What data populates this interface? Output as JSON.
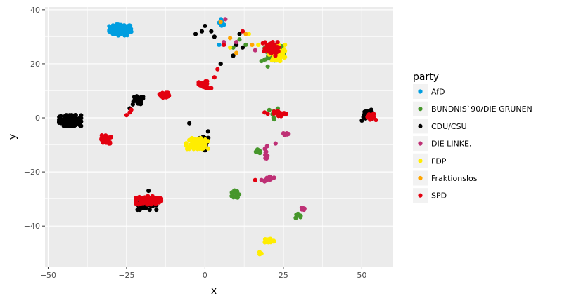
{
  "chart_data": {
    "type": "scatter",
    "xlabel": "x",
    "ylabel": "y",
    "xlim": [
      -51,
      60
    ],
    "ylim": [
      -55,
      41
    ],
    "x_ticks": [
      -50,
      -25,
      0,
      25,
      50
    ],
    "x_tick_labels": [
      "−50",
      "−25",
      "0",
      "25",
      "50"
    ],
    "y_ticks": [
      -40,
      -20,
      0,
      20,
      40
    ],
    "y_tick_labels": [
      "−40",
      "−20",
      "0",
      "20",
      "40"
    ],
    "grid": true,
    "background": "#ebebeb",
    "legend": {
      "title": "party",
      "placement": "right",
      "entries": [
        {
          "label": "AfD",
          "color": "#009ee0"
        },
        {
          "label": "BÜNDNIS`90/DIE GRÜNEN",
          "color": "#46962b"
        },
        {
          "label": "CDU/CSU",
          "color": "#000000"
        },
        {
          "label": "DIE LINKE.",
          "color": "#be3075"
        },
        {
          "label": "FDP",
          "color": "#ffed00"
        },
        {
          "label": "Fraktionslos",
          "color": "#ffa500"
        },
        {
          "label": "SPD",
          "color": "#e3000f"
        }
      ]
    },
    "series": [
      {
        "name": "AfD",
        "color": "#009ee0",
        "clusters": [
          [
            -27,
            32.5,
            3.5,
            2,
            90
          ],
          [
            5.5,
            35,
            1,
            1.5,
            8
          ]
        ],
        "points": [
          [
            4.5,
            27
          ],
          [
            5,
            35
          ]
        ]
      },
      {
        "name": "BÜNDNIS`90/DIE GRÜNEN",
        "color": "#46962b",
        "clusters": [
          [
            22,
            24,
            3,
            3,
            55
          ],
          [
            10,
            -28,
            1.5,
            2,
            14
          ],
          [
            22,
            1,
            1.5,
            3,
            10
          ],
          [
            17,
            -12,
            1,
            1,
            6
          ],
          [
            29.5,
            -36,
            1,
            1,
            6
          ]
        ],
        "points": [
          [
            18,
            21
          ],
          [
            20,
            19
          ],
          [
            11,
            29
          ],
          [
            9,
            26
          ],
          [
            13,
            27
          ]
        ]
      },
      {
        "name": "CDU/CSU",
        "color": "#000000",
        "clusters": [
          [
            -43,
            -1,
            3.5,
            2,
            120
          ],
          [
            -18.5,
            -32,
            3,
            2,
            60
          ],
          [
            -21.5,
            6.5,
            2,
            1.5,
            30
          ],
          [
            52,
            1,
            1.5,
            1.5,
            20
          ],
          [
            -1,
            -9,
            2.5,
            2,
            25
          ]
        ],
        "points": [
          [
            -1,
            32
          ],
          [
            0,
            34
          ],
          [
            -3,
            31
          ],
          [
            3,
            30
          ],
          [
            2,
            32
          ],
          [
            11,
            31
          ],
          [
            5,
            20
          ],
          [
            -24,
            3.5
          ],
          [
            -23,
            5
          ],
          [
            -5,
            -2
          ],
          [
            -18,
            -27
          ],
          [
            0,
            -12
          ],
          [
            1,
            -5
          ],
          [
            10,
            27
          ],
          [
            9,
            23
          ],
          [
            12,
            26
          ],
          [
            50,
            -1
          ],
          [
            53,
            3
          ]
        ]
      },
      {
        "name": "DIE LINKE.",
        "color": "#be3075",
        "clusters": [
          [
            20.5,
            -22.5,
            1.5,
            1,
            14
          ],
          [
            26,
            -6,
            1,
            0.5,
            8
          ],
          [
            19.5,
            -13,
            0.5,
            2.5,
            8
          ],
          [
            31,
            -33.5,
            1,
            0.5,
            8
          ]
        ],
        "points": [
          [
            6.5,
            36.5
          ],
          [
            6,
            28
          ],
          [
            16,
            25
          ],
          [
            22.5,
            -9.5
          ],
          [
            18,
            -23
          ],
          [
            10,
            28
          ]
        ]
      },
      {
        "name": "FDP",
        "color": "#ffed00",
        "clusters": [
          [
            -2.5,
            -9.5,
            3.5,
            2,
            70
          ],
          [
            23,
            24,
            2.5,
            3,
            60
          ],
          [
            20.5,
            -45.5,
            1.5,
            1,
            25
          ],
          [
            17.5,
            -50,
            0.5,
            0.5,
            5
          ]
        ],
        "points": [
          [
            14,
            31
          ],
          [
            17,
            27
          ],
          [
            8,
            26
          ]
        ]
      },
      {
        "name": "Fraktionslos",
        "color": "#ffa500",
        "clusters": [],
        "points": [
          [
            8,
            29.5
          ],
          [
            10,
            24
          ],
          [
            5,
            35.5
          ],
          [
            13,
            31
          ],
          [
            15,
            27
          ]
        ]
      },
      {
        "name": "SPD",
        "color": "#e3000f",
        "clusters": [
          [
            -18,
            -30.5,
            4,
            1.5,
            90
          ],
          [
            20.5,
            25.5,
            3,
            2.5,
            50
          ],
          [
            -31.5,
            -8,
            1.5,
            1.5,
            30
          ],
          [
            -13,
            8.5,
            1.5,
            1,
            20
          ],
          [
            -0.5,
            12,
            1.5,
            1.5,
            25
          ],
          [
            24,
            1.5,
            2,
            1,
            20
          ],
          [
            53,
            0,
            1.5,
            1.5,
            20
          ]
        ],
        "points": [
          [
            -25,
            1
          ],
          [
            -24,
            2
          ],
          [
            -23.5,
            3
          ],
          [
            2,
            11
          ],
          [
            3,
            15
          ],
          [
            4,
            18
          ],
          [
            6,
            27
          ],
          [
            12,
            32
          ],
          [
            19,
            2
          ],
          [
            20,
            1.5
          ],
          [
            16,
            -23
          ],
          [
            1,
            11
          ]
        ]
      }
    ]
  }
}
